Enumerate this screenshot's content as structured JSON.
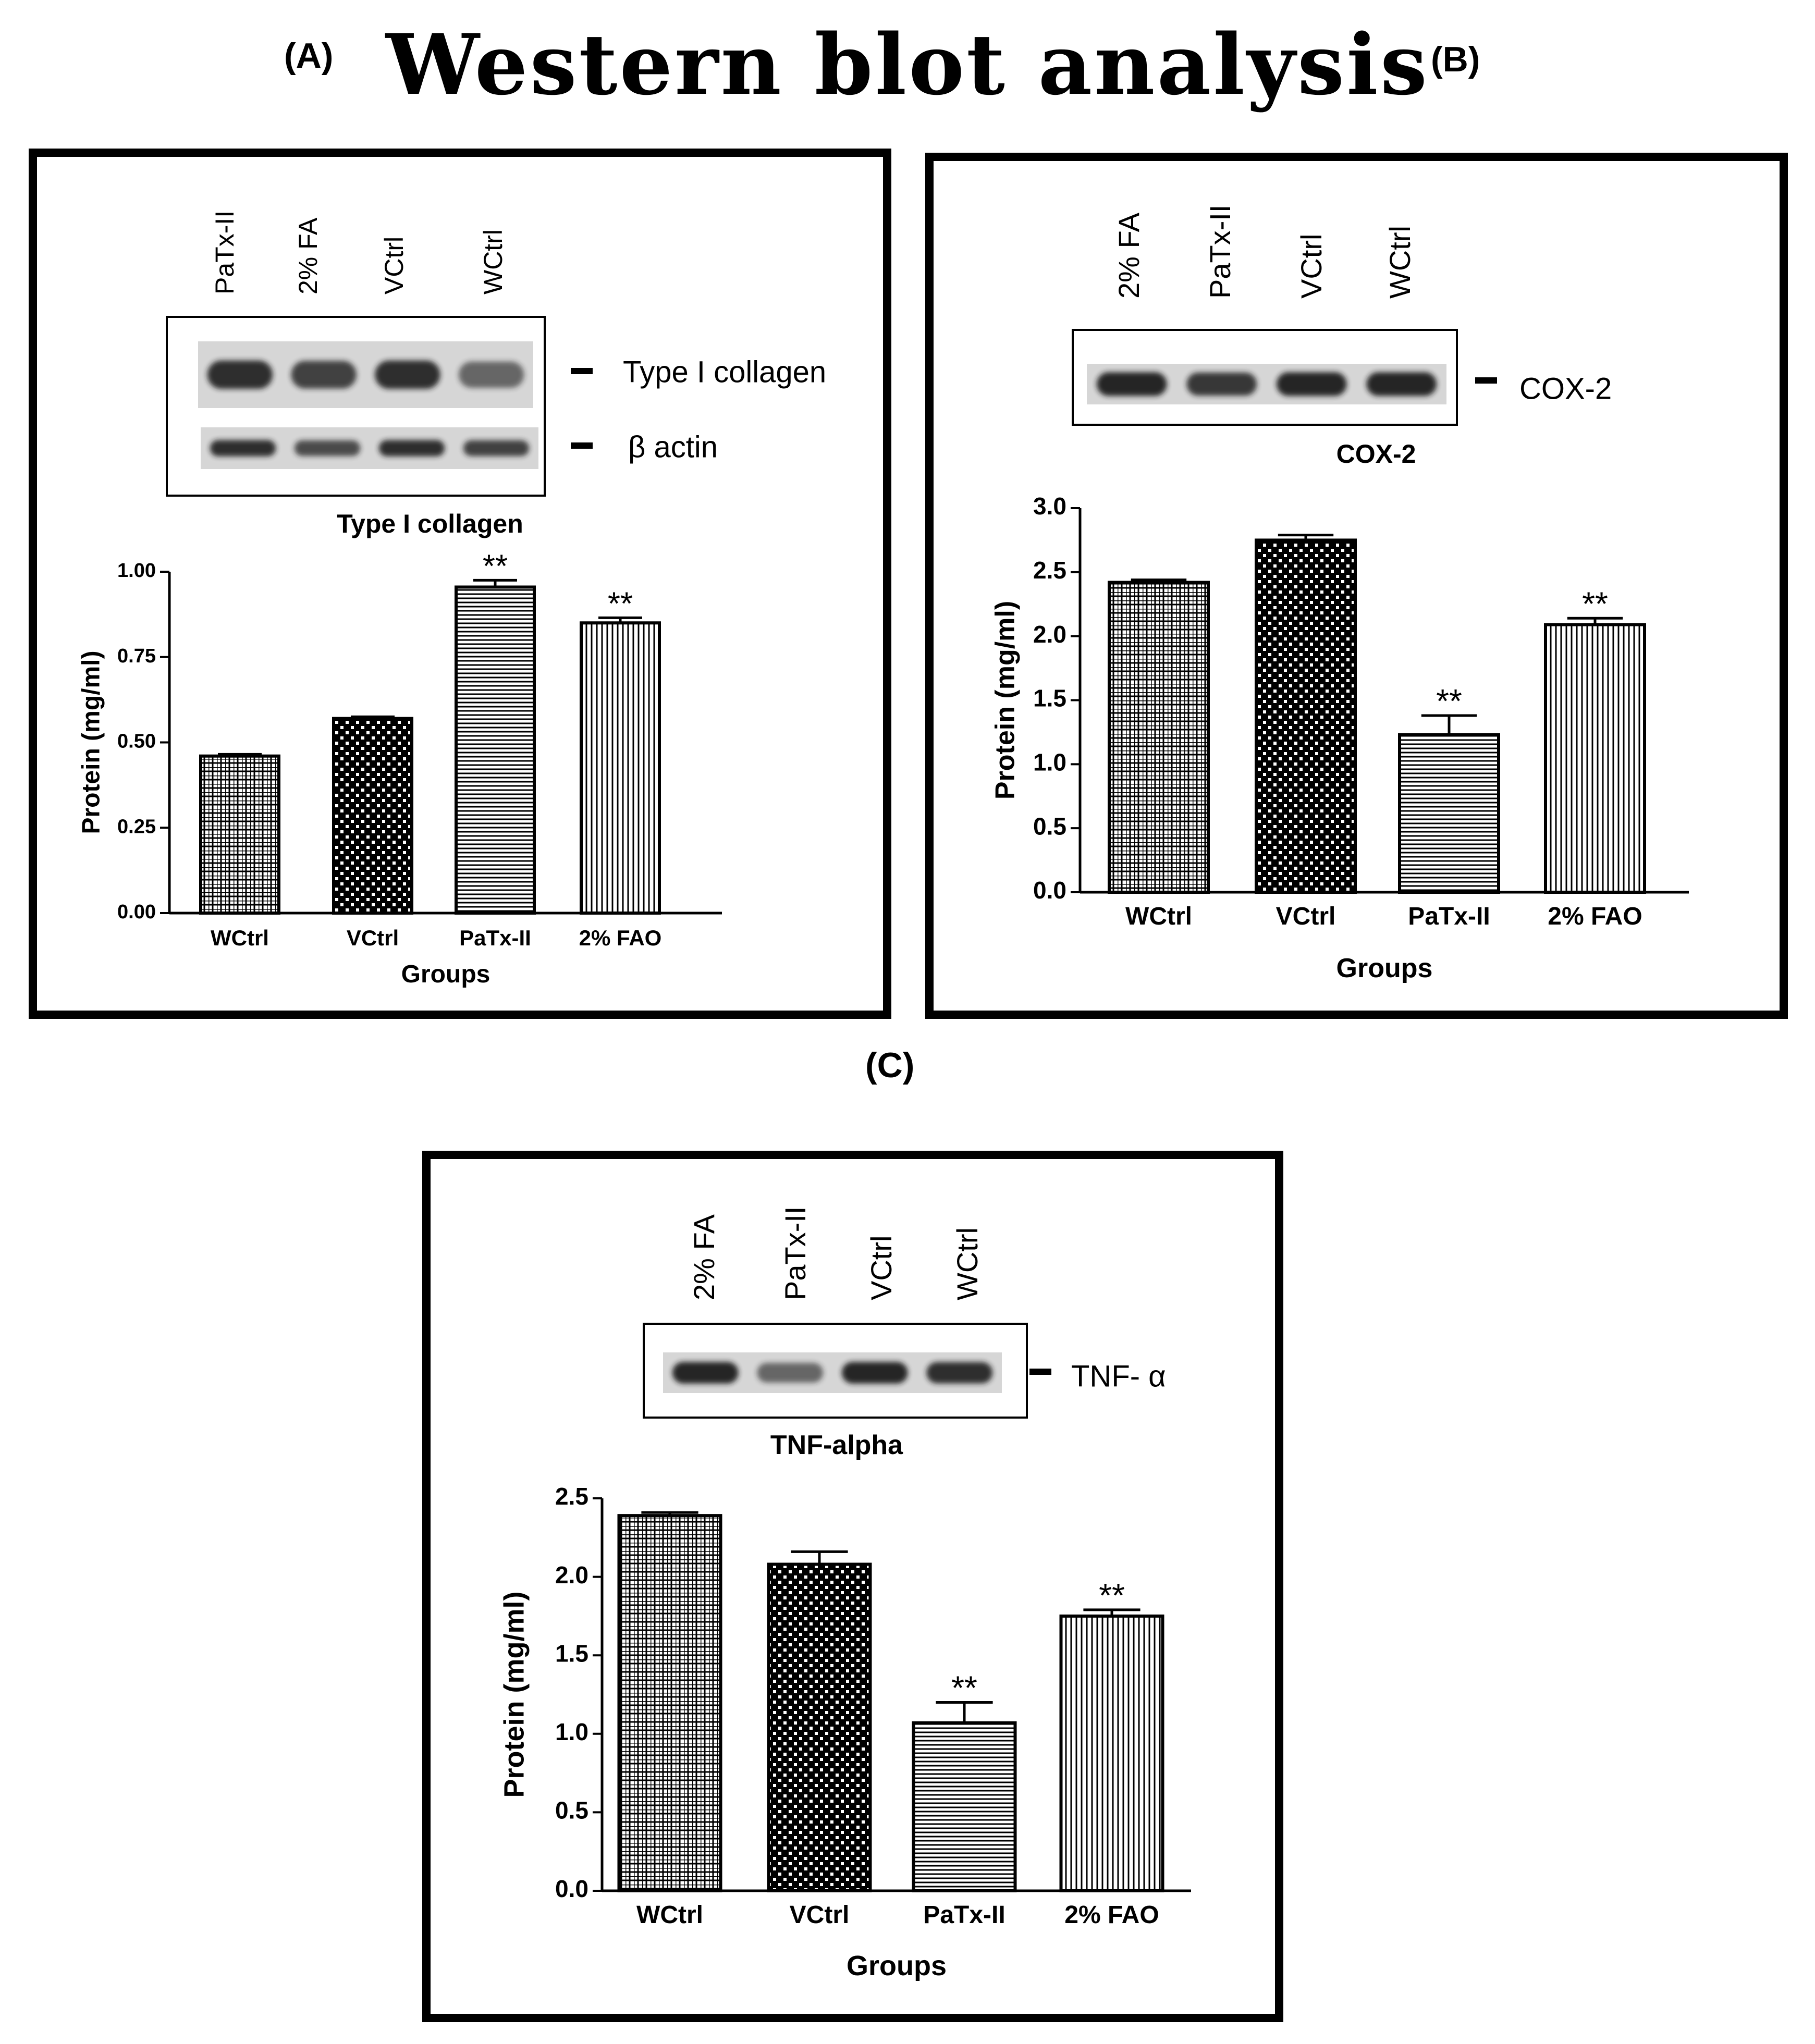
{
  "figure_title": "Western blot analysis",
  "colors": {
    "ink": "#000000",
    "bar_fill": "#ffffff",
    "blot_bg": "#d6d6d6",
    "band": "#1c1c1c"
  },
  "panels": [
    {
      "label": "(A)",
      "lane_labels": [
        "PaTx-II",
        "2% FA",
        "VCtrl",
        "WCtrl"
      ],
      "blot_rows": [
        {
          "marker": "Type I collagen",
          "band_intensity": [
            0.9,
            0.8,
            0.9,
            0.6
          ]
        },
        {
          "marker": "β actin",
          "band_intensity": [
            0.9,
            0.75,
            0.9,
            0.8
          ]
        }
      ],
      "blot_caption": "Type I collagen"
    },
    {
      "label": "(B)",
      "lane_labels": [
        "2% FA",
        "PaTx-II",
        "VCtrl",
        "WCtrl"
      ],
      "blot_rows": [
        {
          "marker": "COX-2",
          "band_intensity": [
            0.95,
            0.85,
            0.95,
            0.95
          ]
        }
      ],
      "blot_caption": "COX-2"
    },
    {
      "label": "(C)",
      "lane_labels": [
        "2% FA",
        "PaTx-II",
        "VCtrl",
        "WCtrl"
      ],
      "blot_rows": [
        {
          "marker": "TNF- α",
          "band_intensity": [
            0.95,
            0.6,
            0.95,
            0.9
          ]
        }
      ],
      "blot_caption": "TNF-alpha"
    }
  ],
  "chart_data": [
    {
      "type": "bar",
      "title": "",
      "xlabel": "Groups",
      "ylabel": "Protein (mg/ml)",
      "categories": [
        "WCtrl",
        "VCtrl",
        "PaTx-II",
        "2% FAO"
      ],
      "values": [
        0.46,
        0.57,
        0.955,
        0.85
      ],
      "errors": [
        0.005,
        0.005,
        0.02,
        0.015
      ],
      "significance": [
        "",
        "",
        "**",
        "**"
      ],
      "patterns": [
        "grid",
        "dots",
        "hlines",
        "vlines"
      ],
      "ylim": [
        0,
        1.0
      ],
      "yticks": [
        "0.00",
        "0.25",
        "0.50",
        "0.75",
        "1.00"
      ]
    },
    {
      "type": "bar",
      "title": "",
      "xlabel": "Groups",
      "ylabel": "Protein (mg/ml)",
      "categories": [
        "WCtrl",
        "VCtrl",
        "PaTx-II",
        "2% FAO"
      ],
      "values": [
        2.42,
        2.75,
        1.23,
        2.09
      ],
      "errors": [
        0.02,
        0.04,
        0.15,
        0.05
      ],
      "significance": [
        "",
        "",
        "**",
        "**"
      ],
      "patterns": [
        "grid",
        "dots",
        "hlines",
        "vlines"
      ],
      "ylim": [
        0,
        3.0
      ],
      "yticks": [
        "0.0",
        "0.5",
        "1.0",
        "1.5",
        "2.0",
        "2.5",
        "3.0"
      ]
    },
    {
      "type": "bar",
      "title": "",
      "xlabel": "Groups",
      "ylabel": "Protein (mg/ml)",
      "categories": [
        "WCtrl",
        "VCtrl",
        "PaTx-II",
        "2% FAO"
      ],
      "values": [
        2.39,
        2.08,
        1.07,
        1.75
      ],
      "errors": [
        0.02,
        0.08,
        0.13,
        0.04
      ],
      "significance": [
        "",
        "",
        "**",
        "**"
      ],
      "patterns": [
        "grid",
        "dots",
        "hlines",
        "vlines"
      ],
      "ylim": [
        0,
        2.5
      ],
      "yticks": [
        "0.0",
        "0.5",
        "1.0",
        "1.5",
        "2.0",
        "2.5"
      ]
    }
  ]
}
